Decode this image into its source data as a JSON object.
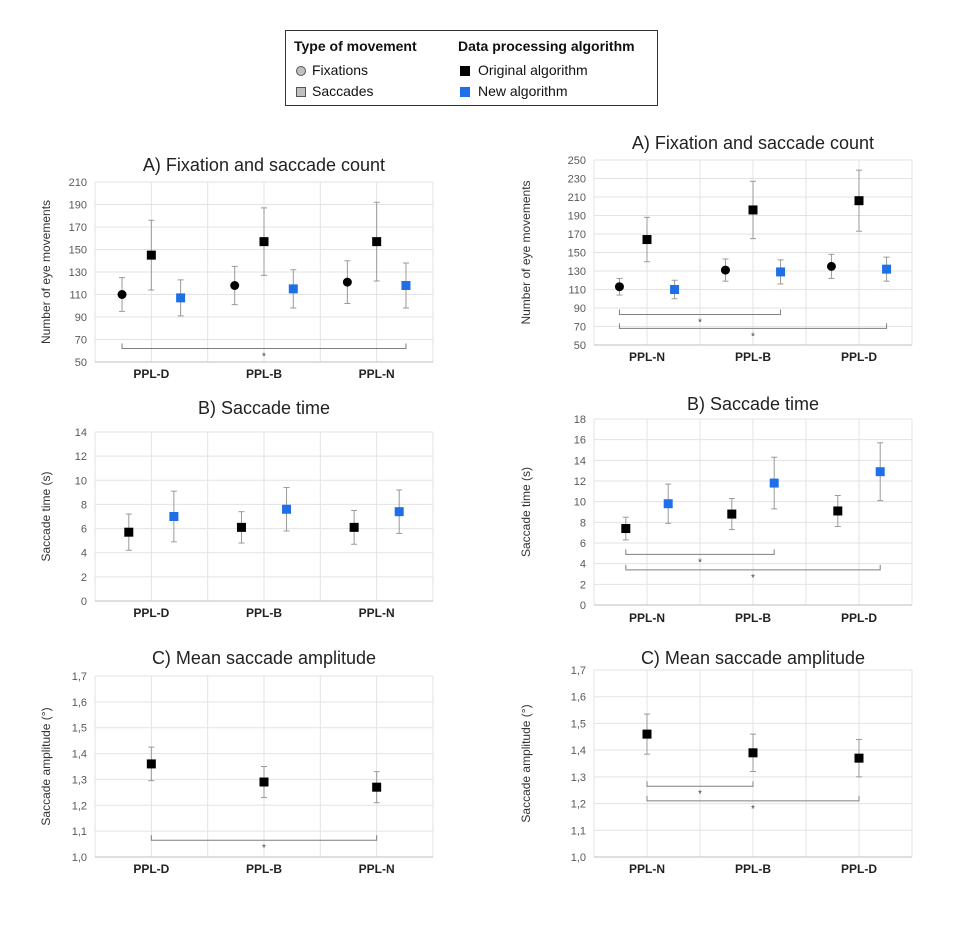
{
  "legend": {
    "movement_title": "Type of movement",
    "algorithm_title": "Data processing algorithm",
    "fixations": "Fixations",
    "saccades": "Saccades",
    "original": "Original algorithm",
    "new": "New algorithm"
  },
  "colors": {
    "original": "#000000",
    "new": "#1f6fe8",
    "errorbar": "#9a9a9a",
    "grid": "#e3e3e3",
    "bracket": "#7f7f7f"
  },
  "chart_data": [
    {
      "id": "left-a",
      "type": "scatter",
      "title": "A) Fixation and saccade count",
      "ylabel": "Number of eye movements",
      "ylim": [
        50,
        210
      ],
      "ystep": 20,
      "decimals": 0,
      "categories": [
        "PPL-D",
        "PPL-B",
        "PPL-N"
      ],
      "series": [
        {
          "name": "Fixations",
          "algorithm": "original",
          "marker": "circle",
          "values": [
            110,
            118,
            121
          ],
          "err": [
            15,
            17,
            19
          ]
        },
        {
          "name": "Saccades",
          "algorithm": "original",
          "marker": "square",
          "values": [
            145,
            157,
            157
          ],
          "err": [
            31,
            30,
            35
          ]
        },
        {
          "name": "Saccades",
          "algorithm": "new",
          "marker": "square",
          "values": [
            107,
            115,
            118
          ],
          "err": [
            16,
            17,
            20
          ]
        }
      ],
      "brackets": [
        {
          "from": 0,
          "to": 2,
          "y": 62,
          "label": "*"
        }
      ]
    },
    {
      "id": "right-a",
      "type": "scatter",
      "title": "A) Fixation and saccade count",
      "ylabel": "Number of eye movements",
      "ylim": [
        50,
        250
      ],
      "ystep": 20,
      "decimals": 0,
      "categories": [
        "PPL-N",
        "PPL-B",
        "PPL-D"
      ],
      "series": [
        {
          "name": "Fixations",
          "algorithm": "original",
          "marker": "circle",
          "values": [
            113,
            131,
            135
          ],
          "err": [
            9,
            12,
            13
          ]
        },
        {
          "name": "Saccades",
          "algorithm": "original",
          "marker": "square",
          "values": [
            164,
            196,
            206
          ],
          "err": [
            24,
            31,
            33
          ]
        },
        {
          "name": "Saccades",
          "algorithm": "new",
          "marker": "square",
          "values": [
            110,
            129,
            132
          ],
          "err": [
            10,
            13,
            13
          ]
        }
      ],
      "brackets": [
        {
          "from": 0,
          "to": 1,
          "y": 83,
          "label": "*"
        },
        {
          "from": 0,
          "to": 2,
          "y": 68,
          "label": "*"
        }
      ]
    },
    {
      "id": "left-b",
      "type": "scatter",
      "title": "B) Saccade time",
      "ylabel": "Saccade time (s)",
      "ylim": [
        0,
        14
      ],
      "ystep": 2,
      "decimals": 0,
      "categories": [
        "PPL-D",
        "PPL-B",
        "PPL-N"
      ],
      "series": [
        {
          "name": "Saccades",
          "algorithm": "original",
          "marker": "square",
          "values": [
            5.7,
            6.1,
            6.1
          ],
          "err": [
            1.5,
            1.3,
            1.4
          ]
        },
        {
          "name": "Saccades",
          "algorithm": "new",
          "marker": "square",
          "values": [
            7.0,
            7.6,
            7.4
          ],
          "err": [
            2.1,
            1.8,
            1.8
          ]
        }
      ],
      "brackets": []
    },
    {
      "id": "right-b",
      "type": "scatter",
      "title": "B) Saccade time",
      "ylabel": "Saccade time (s)",
      "ylim": [
        0,
        18
      ],
      "ystep": 2,
      "decimals": 0,
      "categories": [
        "PPL-N",
        "PPL-B",
        "PPL-D"
      ],
      "series": [
        {
          "name": "Saccades",
          "algorithm": "original",
          "marker": "square",
          "values": [
            7.4,
            8.8,
            9.1
          ],
          "err": [
            1.1,
            1.5,
            1.5
          ]
        },
        {
          "name": "Saccades",
          "algorithm": "new",
          "marker": "square",
          "values": [
            9.8,
            11.8,
            12.9
          ],
          "err": [
            1.9,
            2.5,
            2.8
          ]
        }
      ],
      "brackets": [
        {
          "from": 0,
          "to": 1,
          "y": 4.9,
          "label": "*"
        },
        {
          "from": 0,
          "to": 2,
          "y": 3.4,
          "label": "*"
        }
      ]
    },
    {
      "id": "left-c",
      "type": "scatter",
      "title": "C) Mean saccade amplitude",
      "ylabel": "Saccade amplitude (°)",
      "ylim": [
        1,
        1.7
      ],
      "ystep": 0.1,
      "decimals": 1,
      "categories": [
        "PPL-D",
        "PPL-B",
        "PPL-N"
      ],
      "series": [
        {
          "name": "Saccades",
          "algorithm": "original",
          "marker": "square",
          "values": [
            1.36,
            1.29,
            1.27
          ],
          "err": [
            0.065,
            0.06,
            0.06
          ]
        }
      ],
      "brackets": [
        {
          "from": 0,
          "to": 2,
          "y": 1.065,
          "label": "*"
        }
      ]
    },
    {
      "id": "right-c",
      "type": "scatter",
      "title": "C) Mean saccade amplitude",
      "ylabel": "Saccade amplitude (°)",
      "ylim": [
        1,
        1.7
      ],
      "ystep": 0.1,
      "decimals": 1,
      "categories": [
        "PPL-N",
        "PPL-B",
        "PPL-D"
      ],
      "series": [
        {
          "name": "Saccades",
          "algorithm": "original",
          "marker": "square",
          "values": [
            1.46,
            1.39,
            1.37
          ],
          "err": [
            0.075,
            0.07,
            0.07
          ]
        }
      ],
      "brackets": [
        {
          "from": 0,
          "to": 1,
          "y": 1.265,
          "label": "*"
        },
        {
          "from": 0,
          "to": 2,
          "y": 1.21,
          "label": "*"
        }
      ]
    }
  ]
}
